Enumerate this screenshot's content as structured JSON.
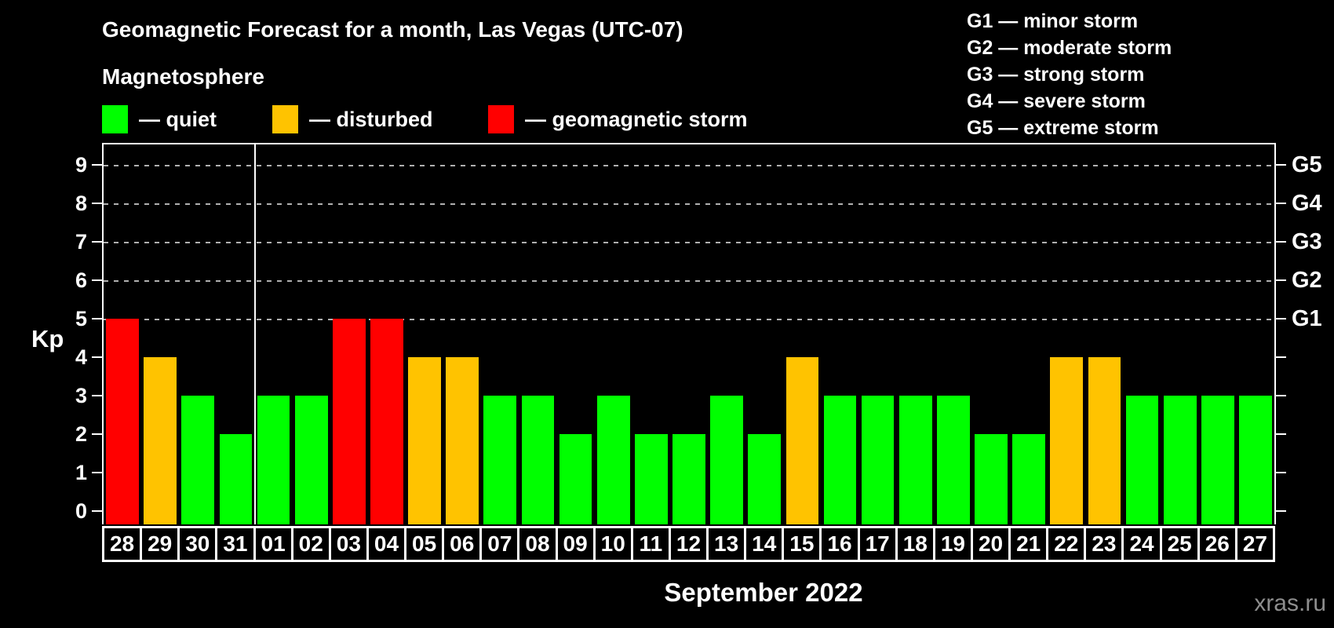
{
  "header": {
    "title": "Geomagnetic Forecast for a month, Las Vegas (UTC-07)",
    "subtitle": "Magnetosphere"
  },
  "legend": [
    {
      "key": "quiet",
      "label": "— quiet",
      "color": "#00ff00"
    },
    {
      "key": "disturbed",
      "label": "— disturbed",
      "color": "#ffc300"
    },
    {
      "key": "storm",
      "label": "— geomagnetic storm",
      "color": "#ff0000"
    }
  ],
  "g_scale_legend": [
    "G1 — minor storm",
    "G2 — moderate storm",
    "G3 — strong storm",
    "G4 — severe storm",
    "G5 — extreme storm"
  ],
  "chart_data": {
    "type": "bar",
    "title": "Geomagnetic Forecast for a month, Las Vegas (UTC-07)",
    "ylabel": "Kp",
    "xlabel": "September 2022",
    "ylim": [
      0,
      9
    ],
    "yticks": [
      0,
      1,
      2,
      3,
      4,
      5,
      6,
      7,
      8,
      9
    ],
    "gridlines_at": [
      5,
      6,
      7,
      8,
      9
    ],
    "grid": "dashed",
    "right_axis": [
      {
        "kp": 5,
        "label": "G1"
      },
      {
        "kp": 6,
        "label": "G2"
      },
      {
        "kp": 7,
        "label": "G3"
      },
      {
        "kp": 8,
        "label": "G4"
      },
      {
        "kp": 9,
        "label": "G5"
      }
    ],
    "status_colors": {
      "quiet": "#00ff00",
      "disturbed": "#ffc300",
      "storm": "#ff0000"
    },
    "month_divider_before_index": 4,
    "categories": [
      "28",
      "29",
      "30",
      "31",
      "01",
      "02",
      "03",
      "04",
      "05",
      "06",
      "07",
      "08",
      "09",
      "10",
      "11",
      "12",
      "13",
      "14",
      "15",
      "16",
      "17",
      "18",
      "19",
      "20",
      "21",
      "22",
      "23",
      "24",
      "25",
      "26",
      "27"
    ],
    "points": [
      {
        "day": "28",
        "kp": 5,
        "status": "storm"
      },
      {
        "day": "29",
        "kp": 4,
        "status": "disturbed"
      },
      {
        "day": "30",
        "kp": 3,
        "status": "quiet"
      },
      {
        "day": "31",
        "kp": 2,
        "status": "quiet"
      },
      {
        "day": "01",
        "kp": 3,
        "status": "quiet"
      },
      {
        "day": "02",
        "kp": 3,
        "status": "quiet"
      },
      {
        "day": "03",
        "kp": 5,
        "status": "storm"
      },
      {
        "day": "04",
        "kp": 5,
        "status": "storm"
      },
      {
        "day": "05",
        "kp": 4,
        "status": "disturbed"
      },
      {
        "day": "06",
        "kp": 4,
        "status": "disturbed"
      },
      {
        "day": "07",
        "kp": 3,
        "status": "quiet"
      },
      {
        "day": "08",
        "kp": 3,
        "status": "quiet"
      },
      {
        "day": "09",
        "kp": 2,
        "status": "quiet"
      },
      {
        "day": "10",
        "kp": 3,
        "status": "quiet"
      },
      {
        "day": "11",
        "kp": 2,
        "status": "quiet"
      },
      {
        "day": "12",
        "kp": 2,
        "status": "quiet"
      },
      {
        "day": "13",
        "kp": 3,
        "status": "quiet"
      },
      {
        "day": "14",
        "kp": 2,
        "status": "quiet"
      },
      {
        "day": "15",
        "kp": 4,
        "status": "disturbed"
      },
      {
        "day": "16",
        "kp": 3,
        "status": "quiet"
      },
      {
        "day": "17",
        "kp": 3,
        "status": "quiet"
      },
      {
        "day": "18",
        "kp": 3,
        "status": "quiet"
      },
      {
        "day": "19",
        "kp": 3,
        "status": "quiet"
      },
      {
        "day": "20",
        "kp": 2,
        "status": "quiet"
      },
      {
        "day": "21",
        "kp": 2,
        "status": "quiet"
      },
      {
        "day": "22",
        "kp": 4,
        "status": "disturbed"
      },
      {
        "day": "23",
        "kp": 4,
        "status": "disturbed"
      },
      {
        "day": "24",
        "kp": 3,
        "status": "quiet"
      },
      {
        "day": "25",
        "kp": 3,
        "status": "quiet"
      },
      {
        "day": "26",
        "kp": 3,
        "status": "quiet"
      },
      {
        "day": "27",
        "kp": 3,
        "status": "quiet"
      }
    ]
  },
  "footer": {
    "month_label": "September 2022",
    "watermark": "xras.ru"
  }
}
